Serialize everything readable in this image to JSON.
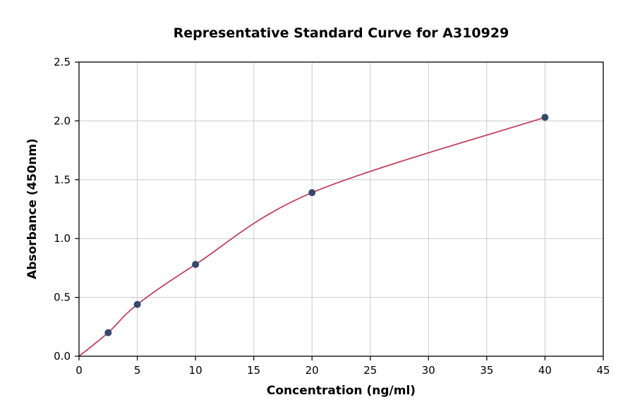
{
  "chart_data": {
    "type": "scatter",
    "title": "Representative Standard Curve for A310929",
    "xlabel": "Concentration (ng/ml)",
    "ylabel": "Absorbance (450nm)",
    "xlim": [
      0,
      45
    ],
    "ylim": [
      0,
      2.5
    ],
    "x_ticks": [
      0,
      5,
      10,
      15,
      20,
      25,
      30,
      35,
      40,
      45
    ],
    "x_tick_labels": [
      "0",
      "5",
      "10",
      "15",
      "20",
      "25",
      "30",
      "35",
      "40",
      "45"
    ],
    "y_ticks": [
      0.0,
      0.5,
      1.0,
      1.5,
      2.0,
      2.5
    ],
    "y_tick_labels": [
      "0.0",
      "0.5",
      "1.0",
      "1.5",
      "2.0",
      "2.5"
    ],
    "grid": true,
    "legend": "none",
    "series": [
      {
        "name": "fit-curve",
        "type": "line",
        "color": "#c0445e",
        "x": [
          0,
          2.5,
          5,
          10,
          20,
          40
        ],
        "y": [
          0.0,
          0.2,
          0.44,
          0.78,
          1.39,
          2.03
        ]
      },
      {
        "name": "standard-points",
        "type": "scatter",
        "color": "#36486b",
        "x": [
          2.5,
          5,
          10,
          20,
          40
        ],
        "y": [
          0.2,
          0.44,
          0.78,
          1.39,
          2.03
        ]
      }
    ],
    "colors": {
      "curve": "#c0445e",
      "point": "#36486b",
      "grid": "#cccccc",
      "axis": "#000000",
      "background": "#ffffff"
    }
  }
}
